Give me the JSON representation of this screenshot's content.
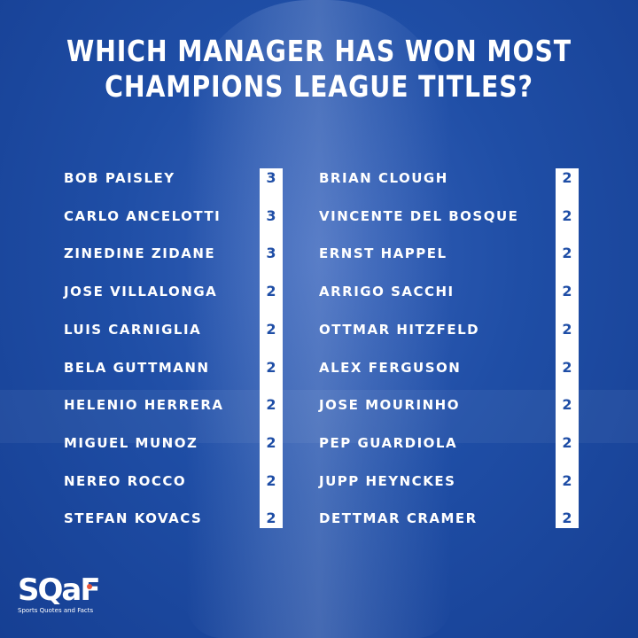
{
  "title_line1": "WHICH MANAGER HAS WON MOST",
  "title_line2": "CHAMPIONS LEAGUE TITLES?",
  "left_column": [
    {
      "name": "BOB PAISLEY",
      "titles": "3"
    },
    {
      "name": "CARLO ANCELOTTI",
      "titles": "3"
    },
    {
      "name": "ZINEDINE ZIDANE",
      "titles": "3"
    },
    {
      "name": "JOSE VILLALONGA",
      "titles": "2"
    },
    {
      "name": "LUIS CARNIGLIA",
      "titles": "2"
    },
    {
      "name": "BELA GUTTMANN",
      "titles": "2"
    },
    {
      "name": "HELENIO HERRERA",
      "titles": "2"
    },
    {
      "name": "MIGUEL MUNOZ",
      "titles": "2"
    },
    {
      "name": "NEREO ROCCO",
      "titles": "2"
    },
    {
      "name": "STEFAN KOVACS",
      "titles": "2"
    }
  ],
  "right_column": [
    {
      "name": "BRIAN CLOUGH",
      "titles": "2"
    },
    {
      "name": "VINCENTE DEL BOSQUE",
      "titles": "2"
    },
    {
      "name": "ERNST HAPPEL",
      "titles": "2"
    },
    {
      "name": "ARRIGO SACCHI",
      "titles": "2"
    },
    {
      "name": "OTTMAR HITZFELD",
      "titles": "2"
    },
    {
      "name": "ALEX FERGUSON",
      "titles": "2"
    },
    {
      "name": "JOSE MOURINHO",
      "titles": "2"
    },
    {
      "name": "PEP GUARDIOLA",
      "titles": "2"
    },
    {
      "name": "JUPP HEYNCKES",
      "titles": "2"
    },
    {
      "name": "DETTMAR CRAMER",
      "titles": "2"
    }
  ],
  "logo": {
    "mark": "SQaF",
    "tagline": "Sports Quotes and Facts"
  },
  "colors": {
    "background": "#1f4ea6",
    "number_text": "#1f4ea6",
    "strip": "#ffffff",
    "logo_dot": "#e8553a"
  }
}
